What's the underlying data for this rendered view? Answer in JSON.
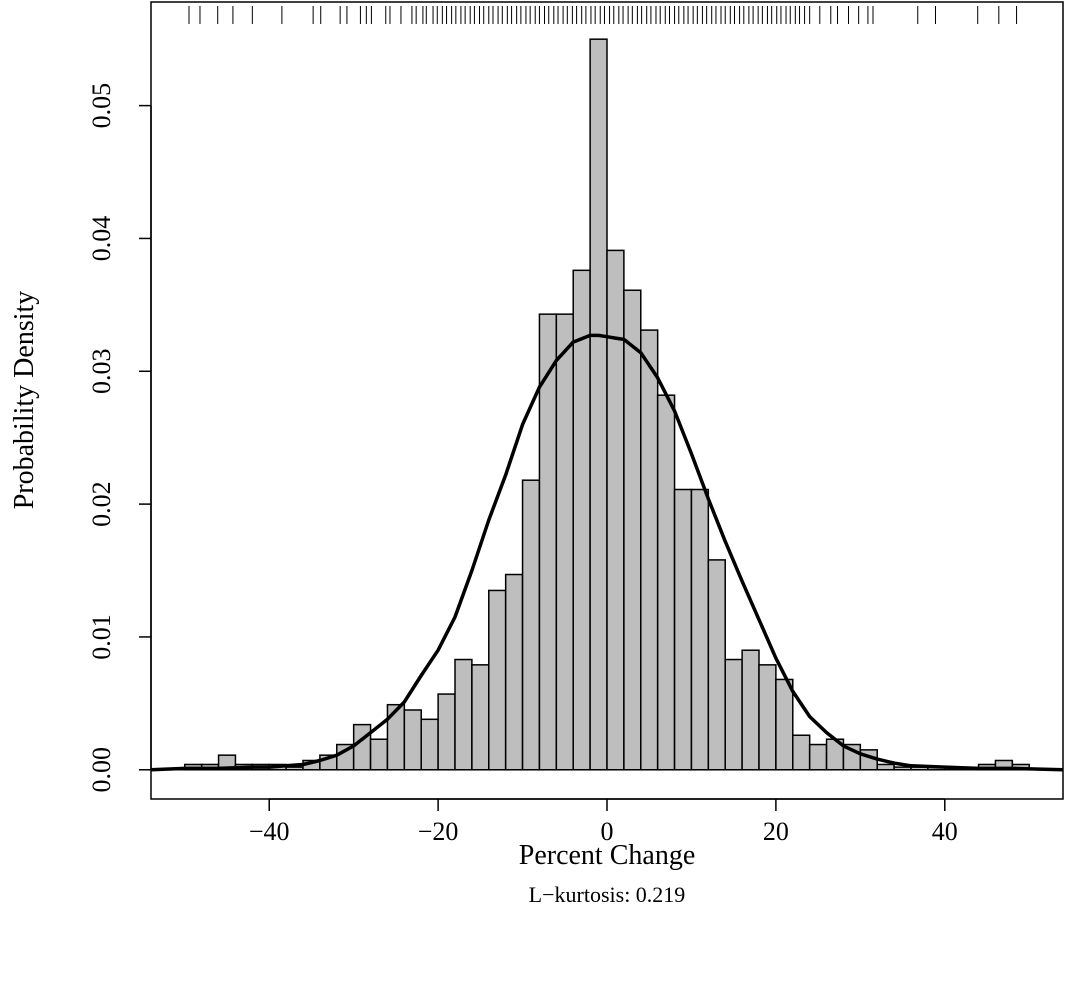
{
  "chart_data": {
    "type": "histogram",
    "xlabel": "Percent Change",
    "ylabel": "Probability Density",
    "subtitle": "L−kurtosis: 0.219",
    "xlim": [
      -54,
      54
    ],
    "ylim": [
      -0.0022,
      0.0578
    ],
    "x_ticks": [
      -40,
      -20,
      0,
      20,
      40
    ],
    "x_tick_labels": [
      "−40",
      "−20",
      "0",
      "20",
      "40"
    ],
    "y_ticks": [
      0.0,
      0.01,
      0.02,
      0.03,
      0.04,
      0.05
    ],
    "y_tick_labels": [
      "0.00",
      "0.01",
      "0.02",
      "0.03",
      "0.04",
      "0.05"
    ],
    "bin_width": 2,
    "bin_starts": [
      -50,
      -48,
      -46,
      -44,
      -42,
      -40,
      -38,
      -36,
      -34,
      -32,
      -30,
      -28,
      -26,
      -24,
      -22,
      -20,
      -18,
      -16,
      -14,
      -12,
      -10,
      -8,
      -6,
      -4,
      -2,
      0,
      2,
      4,
      6,
      8,
      10,
      12,
      14,
      16,
      18,
      20,
      22,
      24,
      26,
      28,
      30,
      32,
      34,
      36,
      38,
      40,
      42,
      44,
      46,
      48
    ],
    "densities": [
      0.0004,
      0.0004,
      0.0011,
      0.0004,
      0.0004,
      0.0004,
      0.0002,
      0.0007,
      0.0011,
      0.0019,
      0.0034,
      0.0023,
      0.0049,
      0.0045,
      0.0038,
      0.0057,
      0.0083,
      0.0079,
      0.0135,
      0.0147,
      0.0218,
      0.0343,
      0.0343,
      0.0376,
      0.055,
      0.0391,
      0.0361,
      0.0331,
      0.0282,
      0.0211,
      0.0211,
      0.0158,
      0.0083,
      0.009,
      0.0079,
      0.0068,
      0.0026,
      0.0019,
      0.0023,
      0.0019,
      0.0015,
      0.0004,
      0.0002,
      0.0002,
      0.0002,
      0.0,
      0.0,
      0.0004,
      0.0007,
      0.0004
    ],
    "density_curve": {
      "x": [
        -54,
        -50,
        -46,
        -42,
        -40,
        -38,
        -36,
        -34,
        -32,
        -30,
        -28,
        -26,
        -24,
        -22,
        -20,
        -18,
        -16,
        -14,
        -12,
        -10,
        -8,
        -6,
        -4,
        -2,
        -1,
        0,
        1,
        2,
        4,
        6,
        8,
        10,
        12,
        14,
        16,
        18,
        20,
        22,
        24,
        26,
        28,
        30,
        32,
        34,
        36,
        40,
        44,
        48,
        54
      ],
      "y": [
        0.0,
        0.0001,
        0.0001,
        0.0002,
        0.0002,
        0.0003,
        0.0004,
        0.0007,
        0.0011,
        0.0018,
        0.0028,
        0.0038,
        0.0051,
        0.0071,
        0.009,
        0.0115,
        0.015,
        0.0188,
        0.0222,
        0.026,
        0.0288,
        0.0308,
        0.0322,
        0.0327,
        0.0327,
        0.0326,
        0.0325,
        0.0324,
        0.0314,
        0.0295,
        0.027,
        0.0238,
        0.0204,
        0.0172,
        0.0142,
        0.0113,
        0.0084,
        0.0059,
        0.004,
        0.0028,
        0.0018,
        0.0012,
        0.0008,
        0.0005,
        0.0003,
        0.0002,
        0.0001,
        0.0001,
        0.0
      ]
    },
    "rug": [
      -49.5,
      -48.2,
      -46.1,
      -44.3,
      -42.0,
      -38.5,
      -34.8,
      -33.9,
      -31.6,
      -30.8,
      -29.2,
      -28.5,
      -27.9,
      -26.2,
      -25.7,
      -24.4,
      -23.1,
      -22.6,
      -21.8,
      -21.4,
      -20.6,
      -20.1,
      -19.5,
      -19.0,
      -18.4,
      -17.9,
      -17.3,
      -16.8,
      -16.2,
      -15.7,
      -15.1,
      -14.6,
      -14.0,
      -13.5,
      -12.9,
      -12.4,
      -11.8,
      -11.3,
      -10.7,
      -10.2,
      -9.6,
      -9.1,
      -8.5,
      -8.0,
      -7.4,
      -6.9,
      -6.3,
      -5.8,
      -5.2,
      -4.7,
      -4.1,
      -3.6,
      -3.0,
      -2.5,
      -1.9,
      -1.4,
      -0.8,
      -0.3,
      0.3,
      0.8,
      1.4,
      1.9,
      2.5,
      3.0,
      3.6,
      4.1,
      4.7,
      5.2,
      5.8,
      6.3,
      6.9,
      7.4,
      8.0,
      8.5,
      9.1,
      9.6,
      10.2,
      10.7,
      11.3,
      11.8,
      12.4,
      12.9,
      13.5,
      14.0,
      14.6,
      15.1,
      15.7,
      16.2,
      16.8,
      17.3,
      17.9,
      18.4,
      19.0,
      19.5,
      20.1,
      20.6,
      21.2,
      21.7,
      22.3,
      22.8,
      23.4,
      24.0,
      25.2,
      26.5,
      27.3,
      28.6,
      29.8,
      30.9,
      31.5,
      36.8,
      38.9,
      43.9,
      46.4,
      48.5
    ],
    "colors": {
      "bar_fill": "#bebebe",
      "bar_stroke": "#000000",
      "curve": "#000000"
    },
    "grid": false,
    "legend": "none"
  }
}
